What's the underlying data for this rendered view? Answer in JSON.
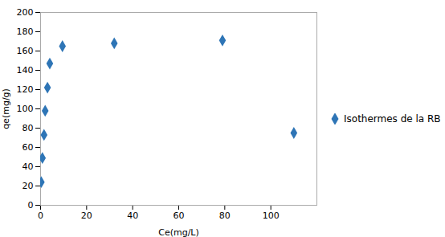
{
  "chart_data": {
    "type": "scatter",
    "x": [
      0.3,
      0.8,
      1.5,
      2.0,
      3.0,
      4.0,
      9.5,
      32.0,
      79.0,
      110.0
    ],
    "series": [
      {
        "name": "Isothermes de la RB",
        "color": "#2E75B6",
        "marker": "diamond",
        "values": [
          24,
          49,
          73,
          98,
          122,
          147,
          165,
          168,
          171,
          75
        ]
      }
    ],
    "xlabel": "Ce(mg/L)",
    "ylabel": "qe(mg/g)",
    "xlim": [
      0,
      120
    ],
    "ylim": [
      0,
      200
    ],
    "xticks": [
      0,
      20,
      40,
      60,
      80,
      100
    ],
    "yticks": [
      0,
      20,
      40,
      60,
      80,
      100,
      120,
      140,
      160,
      180,
      200
    ],
    "grid": false,
    "legend": "right"
  }
}
